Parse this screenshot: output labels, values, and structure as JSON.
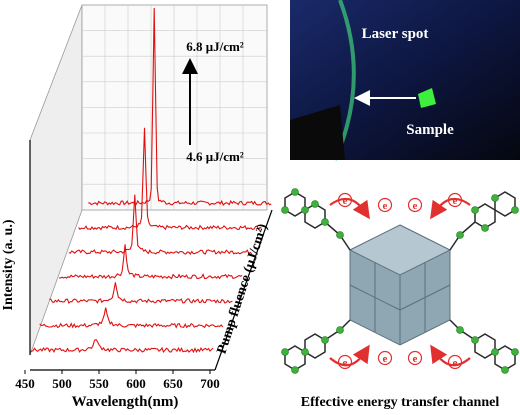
{
  "spectra_panel": {
    "y_axis_label": "Intensity (a. u.)",
    "x_axis_label": "Wavelength(nm)",
    "z_axis_label": "Pump fluence (μJ/cm²)",
    "x_ticks": [
      "450",
      "500",
      "550",
      "600",
      "650",
      "700"
    ],
    "fluence_high": "6.8 μJ/cm²",
    "fluence_low": "4.6 μJ/cm²"
  },
  "photo_panel": {
    "laser_label": "Laser spot",
    "sample_label": "Sample"
  },
  "diagram_panel": {
    "caption": "Effective energy transfer channel",
    "electron_symbol": "e"
  }
}
